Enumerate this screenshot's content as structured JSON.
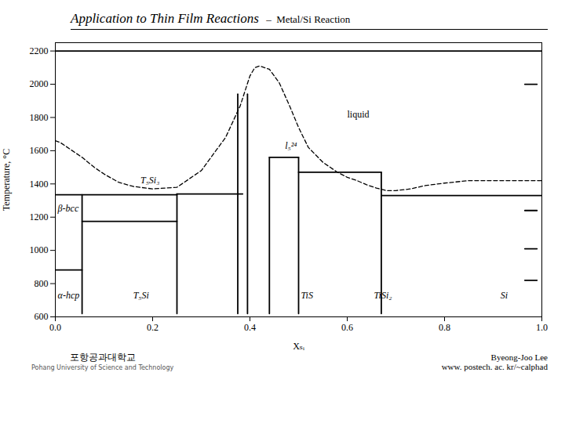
{
  "chart_data": {
    "type": "line",
    "title": "Application to Thin Film Reactions",
    "subtitle": " –  Metal/Si Reaction",
    "x_label": "Xₛᵢ",
    "y_label": "Temperature, °C",
    "xlim": [
      0.0,
      1.0
    ],
    "ylim": [
      600,
      2250
    ],
    "xticks": [
      {
        "value": 0,
        "label": "0.0"
      },
      0.2,
      0.4,
      0.6,
      0.8,
      {
        "value": 1.0,
        "label": "1.0"
      }
    ],
    "yticks": [
      600,
      800,
      1000,
      1200,
      1400,
      1600,
      1800,
      2000,
      2200
    ],
    "grid": false,
    "color": "#000000",
    "series": [
      {
        "line_style": "dashed",
        "x": [
          0.0,
          0.01,
          0.03,
          0.055,
          0.08,
          0.1,
          0.13,
          0.16,
          0.2,
          0.25,
          0.3,
          0.35,
          0.38,
          0.4,
          0.41,
          0.42,
          0.44,
          0.46,
          0.48,
          0.5,
          0.52,
          0.55,
          0.58,
          0.6,
          0.62,
          0.64,
          0.66,
          0.68,
          0.7,
          0.73,
          0.76,
          0.8,
          0.85,
          0.9,
          0.95,
          1.0
        ],
        "values": [
          1660,
          1650,
          1610,
          1560,
          1500,
          1460,
          1410,
          1385,
          1370,
          1380,
          1480,
          1680,
          1870,
          2050,
          2100,
          2110,
          2090,
          2010,
          1880,
          1740,
          1620,
          1530,
          1470,
          1440,
          1420,
          1395,
          1375,
          1360,
          1360,
          1370,
          1390,
          1405,
          1420,
          1420,
          1420,
          1420
        ]
      },
      {
        "line_style": "solid",
        "x": [
          0.0,
          0.25
        ],
        "values": [
          1335,
          1335
        ]
      },
      {
        "line_style": "solid",
        "x": [
          0.25,
          0.385
        ],
        "values": [
          1340,
          1340
        ]
      },
      {
        "line_style": "solid",
        "x": [
          0.44,
          0.5
        ],
        "values": [
          1560,
          1560
        ]
      },
      {
        "line_style": "solid",
        "x": [
          0.5,
          0.67
        ],
        "values": [
          1470,
          1470
        ]
      },
      {
        "line_style": "solid",
        "x": [
          0.67,
          1.0
        ],
        "values": [
          1330,
          1330
        ]
      },
      {
        "line_style": "solid",
        "x": [
          0.055,
          0.25
        ],
        "values": [
          1175,
          1175
        ]
      },
      {
        "line_style": "solid",
        "x": [
          0.0,
          0.055
        ],
        "values": [
          882,
          882
        ]
      },
      {
        "line_style": "solid",
        "x": [
          0.375,
          0.375
        ],
        "values": [
          620,
          1940
        ]
      },
      {
        "line_style": "solid",
        "x": [
          0.395,
          0.395
        ],
        "values": [
          620,
          1940
        ]
      },
      {
        "line_style": "solid",
        "x": [
          0.44,
          0.44
        ],
        "values": [
          620,
          1560
        ]
      },
      {
        "line_style": "solid",
        "x": [
          0.5,
          0.5
        ],
        "values": [
          620,
          1560
        ]
      },
      {
        "line_style": "solid",
        "x": [
          0.67,
          0.67
        ],
        "values": [
          620,
          1470
        ]
      },
      {
        "line_style": "solid",
        "x": [
          0.055,
          0.055
        ],
        "values": [
          620,
          1335
        ]
      },
      {
        "line_style": "solid",
        "x": [
          0.25,
          0.25
        ],
        "values": [
          620,
          1340
        ]
      },
      {
        "line_style": "solid",
        "x": [
          0.965,
          0.99
        ],
        "values": [
          2000,
          2000
        ]
      },
      {
        "line_style": "solid",
        "x": [
          0.965,
          0.99
        ],
        "values": [
          1240,
          1240
        ]
      },
      {
        "line_style": "solid",
        "x": [
          0.965,
          0.99
        ],
        "values": [
          1010,
          1010
        ]
      },
      {
        "line_style": "solid",
        "x": [
          0.965,
          0.99
        ],
        "values": [
          820,
          820
        ]
      },
      {
        "line_style": "solid",
        "x": [
          0.0,
          1.0
        ],
        "values": [
          2200,
          2200
        ]
      }
    ],
    "annotations": [
      {
        "text": "α-hcp",
        "x": 0.005,
        "y": 730,
        "italic": true
      },
      {
        "text": "T₅Si",
        "x": 0.16,
        "y": 730,
        "italic": true
      },
      {
        "text": "β-bcc",
        "x": 0.005,
        "y": 1250,
        "italic": true
      },
      {
        "text": "T₅Si₃",
        "x": 0.175,
        "y": 1420,
        "italic": true
      },
      {
        "text": "TiS",
        "x": 0.505,
        "y": 730,
        "italic": true
      },
      {
        "text": "TiSi₂",
        "x": 0.655,
        "y": 730,
        "italic": true
      },
      {
        "text": "Si",
        "x": 0.915,
        "y": 730,
        "italic": true
      },
      {
        "text": "liquid",
        "x": 0.6,
        "y": 1820,
        "italic": false
      },
      {
        "text": "l₅²⁴",
        "x": 0.472,
        "y": 1630,
        "italic": true
      }
    ],
    "caption": [
      "Byeong-Joo Lee",
      "www. postech. ac. kr/~calphad"
    ],
    "credits": [
      "포항공과대학교",
      "Pohang University of Science and Technology"
    ]
  }
}
